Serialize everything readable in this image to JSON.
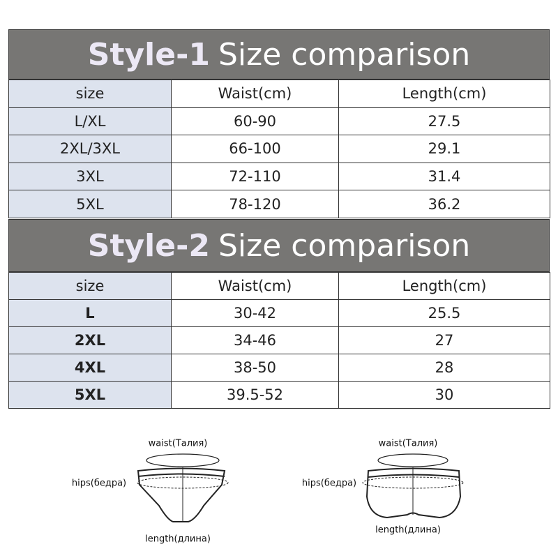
{
  "tables": [
    {
      "label": "Style-1",
      "title": "Size comparison",
      "header": [
        "size",
        "Waist(cm)",
        "Length(cm)"
      ],
      "rows": [
        [
          "L/XL",
          "60-90",
          "27.5"
        ],
        [
          "2XL/3XL",
          "66-100",
          "29.1"
        ],
        [
          "3XL",
          "72-110",
          "31.4"
        ],
        [
          "5XL",
          "78-120",
          "36.2"
        ]
      ]
    },
    {
      "label": "Style-2",
      "title": "Size comparison",
      "header": [
        "size",
        "Waist(cm)",
        "Length(cm)"
      ],
      "rows": [
        [
          "L",
          "30-42",
          "25.5"
        ],
        [
          "2XL",
          "34-46",
          "27"
        ],
        [
          "4XL",
          "38-50",
          "28"
        ],
        [
          "5XL",
          "39.5-52",
          "30"
        ]
      ]
    }
  ],
  "diagrams": [
    {
      "waist": "waist(Талия)",
      "hips": "hips(бедра)",
      "length": "length(длина)"
    },
    {
      "waist": "waist(Талия)",
      "hips": "hips(бедра)",
      "length": "length(длина)"
    }
  ]
}
